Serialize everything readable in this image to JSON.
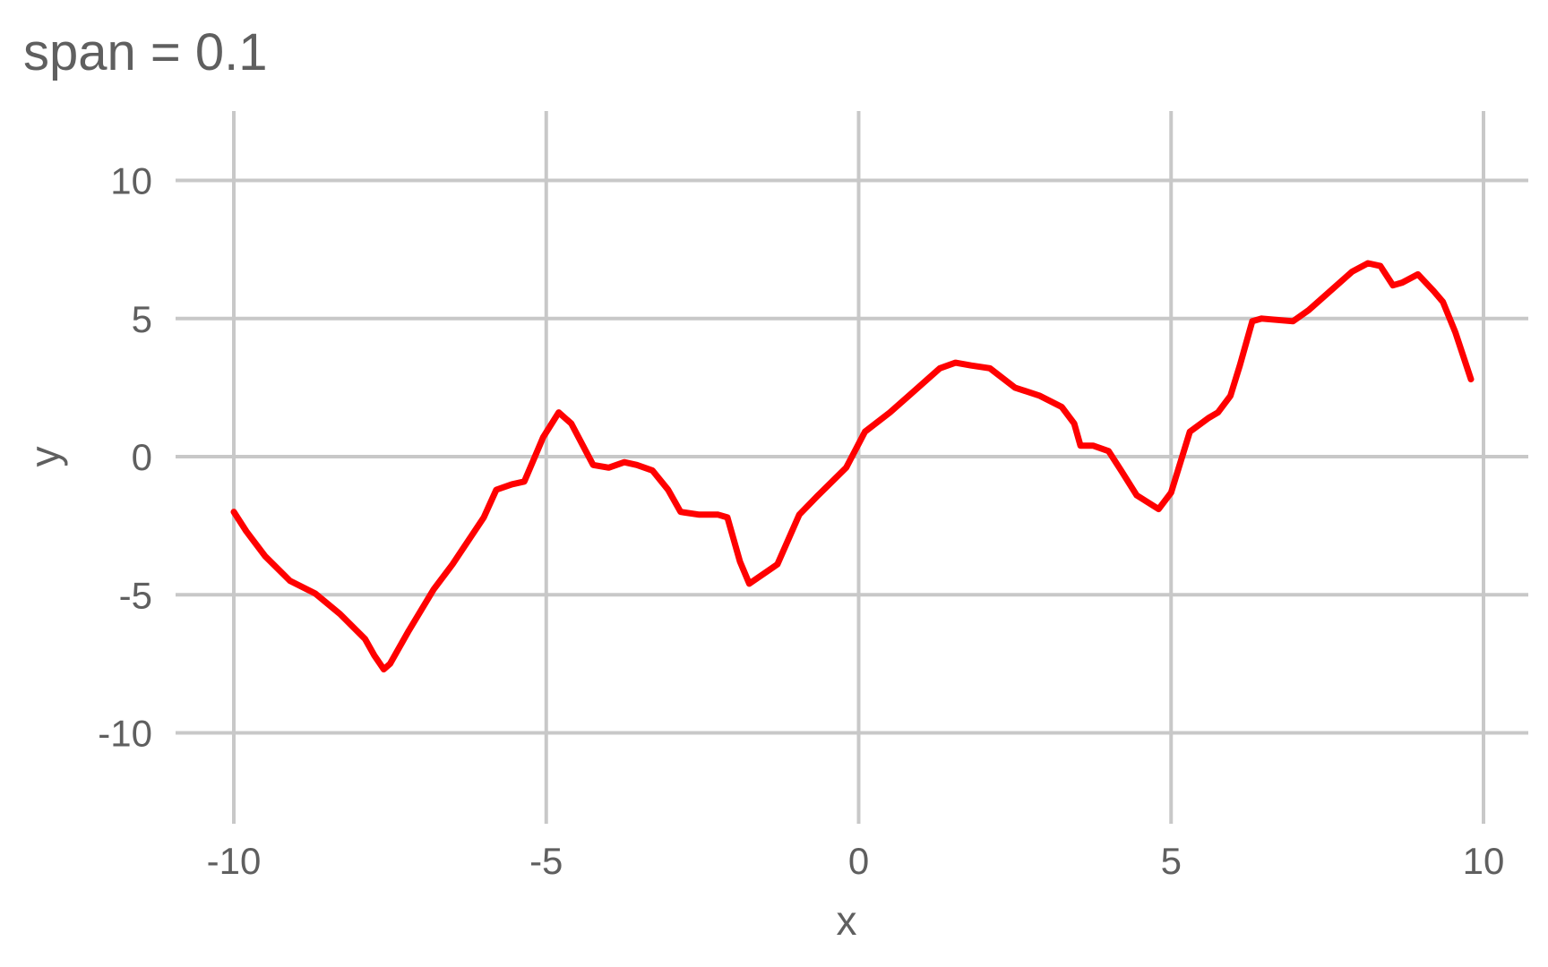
{
  "chart_data": {
    "type": "line",
    "title": "span = 0.1",
    "xlabel": "x",
    "ylabel": "y",
    "xlim": [
      -10,
      10
    ],
    "ylim": [
      -12,
      12
    ],
    "x_ticks": [
      -10,
      -5,
      0,
      5,
      10
    ],
    "y_ticks": [
      -10,
      -5,
      0,
      5,
      10
    ],
    "x_tick_labels": [
      "-10",
      "-5",
      "0",
      "5",
      "10"
    ],
    "y_tick_labels": [
      "-10",
      "-5",
      "0",
      "5",
      "10"
    ],
    "grid": true,
    "legend": "none",
    "series": [
      {
        "color": "#ff0000",
        "x": [
          -10.0,
          -9.8,
          -9.5,
          -9.1,
          -8.7,
          -8.3,
          -7.9,
          -7.75,
          -7.6,
          -7.5,
          -7.2,
          -6.8,
          -6.5,
          -6.0,
          -5.8,
          -5.55,
          -5.35,
          -5.05,
          -4.8,
          -4.6,
          -4.25,
          -4.0,
          -3.75,
          -3.55,
          -3.3,
          -3.05,
          -2.85,
          -2.55,
          -2.25,
          -2.1,
          -1.9,
          -1.75,
          -1.3,
          -0.95,
          -0.65,
          -0.2,
          0.1,
          0.5,
          0.9,
          1.3,
          1.55,
          1.8,
          2.1,
          2.5,
          2.9,
          3.25,
          3.45,
          3.55,
          3.75,
          4.0,
          4.2,
          4.45,
          4.8,
          5.0,
          5.3,
          5.6,
          5.75,
          5.95,
          6.1,
          6.3,
          6.45,
          6.95,
          7.2,
          7.5,
          7.9,
          8.15,
          8.35,
          8.55,
          8.7,
          8.95,
          9.2,
          9.35,
          9.55,
          9.8
        ],
        "y": [
          -2.0,
          -2.7,
          -3.6,
          -4.5,
          -4.95,
          -5.7,
          -6.6,
          -7.2,
          -7.7,
          -7.5,
          -6.3,
          -4.8,
          -3.9,
          -2.2,
          -1.2,
          -1.0,
          -0.9,
          0.7,
          1.6,
          1.2,
          -0.3,
          -0.4,
          -0.2,
          -0.3,
          -0.5,
          -1.2,
          -2.0,
          -2.1,
          -2.1,
          -2.2,
          -3.8,
          -4.6,
          -3.9,
          -2.1,
          -1.4,
          -0.4,
          0.9,
          1.6,
          2.4,
          3.2,
          3.4,
          3.3,
          3.2,
          2.5,
          2.2,
          1.8,
          1.2,
          0.4,
          0.4,
          0.2,
          -0.5,
          -1.4,
          -1.9,
          -1.3,
          0.9,
          1.4,
          1.6,
          2.2,
          3.3,
          4.9,
          5.0,
          4.9,
          5.3,
          5.9,
          6.7,
          7.0,
          6.9,
          6.2,
          6.3,
          6.6,
          6.0,
          5.6,
          4.5,
          2.8
        ]
      }
    ]
  }
}
